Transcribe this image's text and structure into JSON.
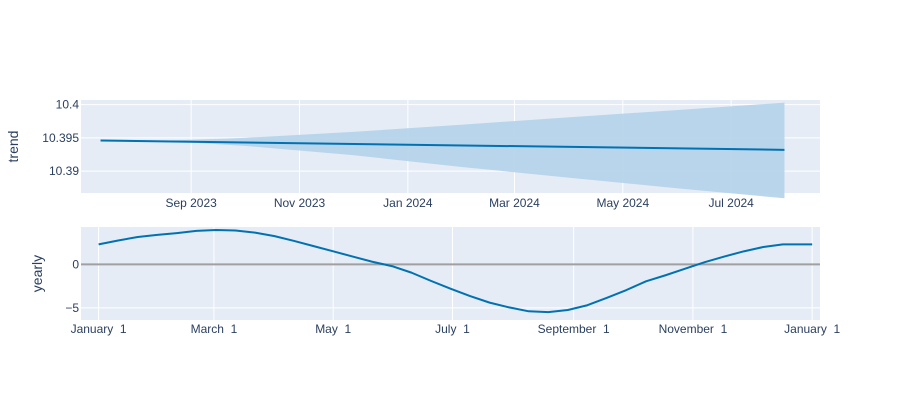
{
  "chart_data": [
    {
      "type": "area",
      "ylabel": "trend",
      "ylim": [
        10.3867,
        10.4007
      ],
      "yticks": [
        {
          "value": 10.39,
          "label": "10.39"
        },
        {
          "value": 10.395,
          "label": "10.395"
        },
        {
          "value": 10.4,
          "label": "10.4"
        }
      ],
      "xlim": [
        "2023-07-01",
        "2024-08-20"
      ],
      "xticks": [
        {
          "value": "2023-09-01",
          "label": "Sep 2023"
        },
        {
          "value": "2023-11-01",
          "label": "Nov 2023"
        },
        {
          "value": "2024-01-01",
          "label": "Jan 2024"
        },
        {
          "value": "2024-03-01",
          "label": "Mar 2024"
        },
        {
          "value": "2024-05-01",
          "label": "May 2024"
        },
        {
          "value": "2024-07-01",
          "label": "Jul 2024"
        }
      ],
      "series": [
        {
          "role": "trend",
          "x": [
            "2023-07-12",
            "2024-07-31"
          ],
          "y": [
            10.3946,
            10.3932
          ]
        },
        {
          "role": "uncertainty",
          "x": [
            "2023-07-12",
            "2023-08-20",
            "2023-10-01",
            "2023-12-01",
            "2024-02-01",
            "2024-04-01",
            "2024-06-01",
            "2024-07-31"
          ],
          "upper": [
            10.3946,
            10.3946,
            10.395,
            10.3959,
            10.397,
            10.3981,
            10.3992,
            10.4003
          ],
          "lower": [
            10.3946,
            10.3945,
            10.3938,
            10.3924,
            10.3906,
            10.389,
            10.3874,
            10.3859
          ]
        }
      ],
      "grid": true,
      "colors": {
        "line": "#0072b2",
        "band": "#b6d4ea",
        "plot_bg": "#e5ecf6",
        "grid": "#ffffff"
      }
    },
    {
      "type": "line",
      "ylabel": "yearly",
      "ylim": [
        -6.4,
        4.3
      ],
      "yticks": [
        {
          "value": 0,
          "label": "0"
        },
        {
          "value": -5,
          "label": "−5"
        }
      ],
      "xlim": [
        -9,
        369
      ],
      "xticks": [
        {
          "value": 0,
          "label": "January  1"
        },
        {
          "value": 59,
          "label": "March  1"
        },
        {
          "value": 120,
          "label": "May  1"
        },
        {
          "value": 181,
          "label": "July  1"
        },
        {
          "value": 243,
          "label": "September  1"
        },
        {
          "value": 304,
          "label": "November  1"
        },
        {
          "value": 365,
          "label": "January  1"
        }
      ],
      "series": [
        {
          "role": "yearly",
          "x": [
            0,
            10,
            20,
            30,
            40,
            50,
            60,
            70,
            80,
            90,
            100,
            110,
            120,
            130,
            140,
            150,
            160,
            170,
            180,
            190,
            200,
            210,
            220,
            230,
            240,
            250,
            260,
            270,
            280,
            290,
            300,
            310,
            320,
            330,
            340,
            350,
            365
          ],
          "y": [
            2.3,
            2.75,
            3.15,
            3.4,
            3.6,
            3.85,
            3.95,
            3.9,
            3.65,
            3.25,
            2.7,
            2.1,
            1.5,
            0.9,
            0.3,
            -0.2,
            -0.95,
            -1.9,
            -2.8,
            -3.65,
            -4.4,
            -4.95,
            -5.4,
            -5.5,
            -5.25,
            -4.7,
            -3.85,
            -2.95,
            -1.95,
            -1.25,
            -0.5,
            0.25,
            0.9,
            1.5,
            2.0,
            2.3,
            2.3
          ]
        }
      ],
      "zero_line": true,
      "grid": true,
      "colors": {
        "line": "#0072b2",
        "zero_line": "#a0a0a0",
        "plot_bg": "#e5ecf6",
        "grid": "#ffffff"
      }
    }
  ]
}
